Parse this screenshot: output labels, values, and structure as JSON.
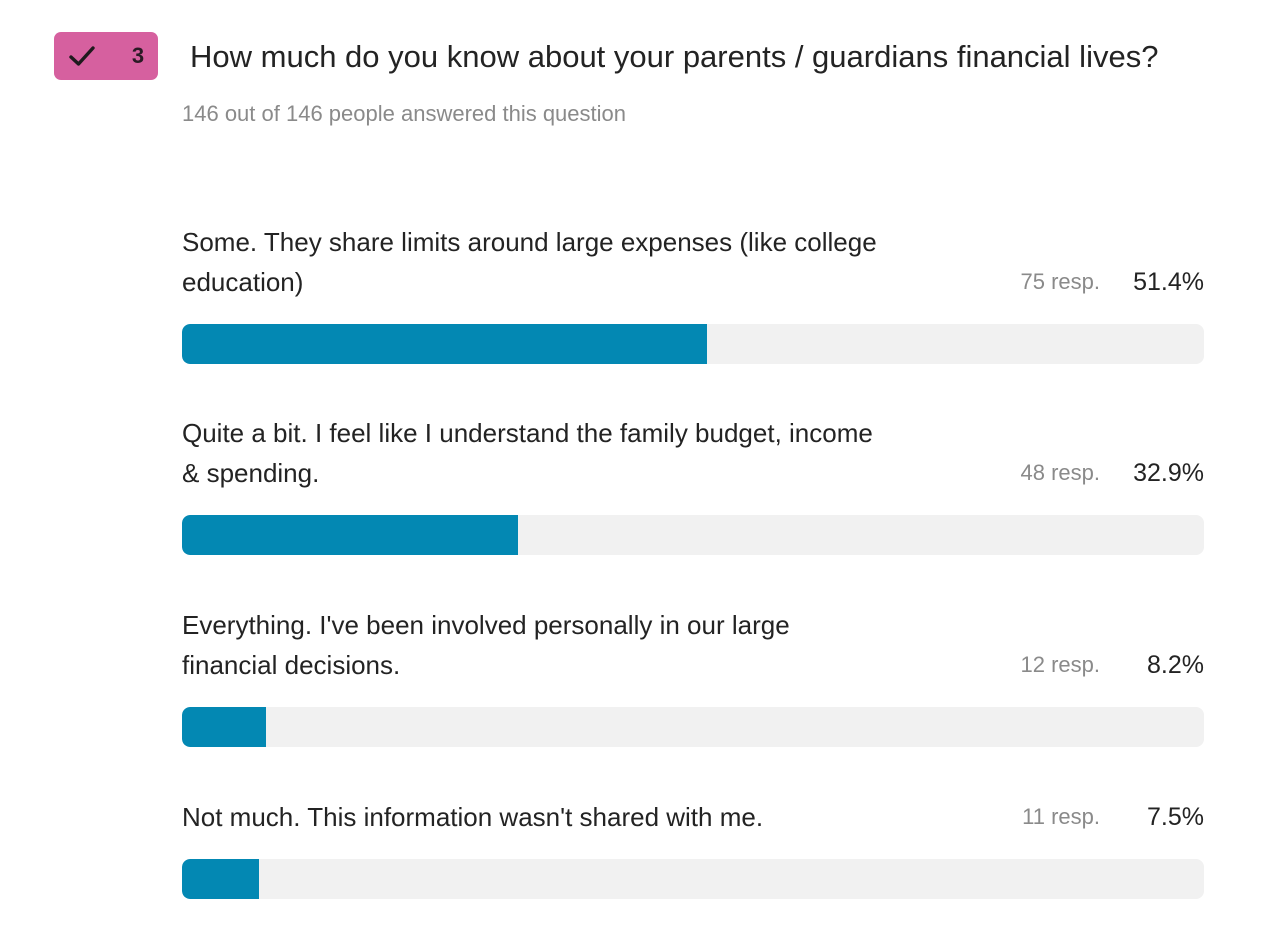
{
  "question": {
    "number": "3",
    "title": "How much do you know about your parents / guardians financial lives?",
    "answered_text": "146 out of 146 people answered this question"
  },
  "colors": {
    "badge": "#d6609f",
    "bar_fill": "#0388b3",
    "bar_track": "#f1f1f1",
    "check": "#1f1a1d"
  },
  "icons": {
    "badge_icon": "check-icon"
  },
  "chart_data": {
    "type": "bar",
    "orientation": "horizontal",
    "categories": [
      "Some. They share limits around large expenses (like college education)",
      "Quite a bit. I feel like I understand the family budget, income & spending.",
      "Everything. I've been involved personally in our large financial decisions.",
      "Not much. This information wasn't shared with me."
    ],
    "responses_labels": [
      "75 resp.",
      "48 resp.",
      "12 resp.",
      "11 resp."
    ],
    "percent_labels": [
      "51.4%",
      "32.9%",
      "8.2%",
      "7.5%"
    ],
    "values": [
      51.4,
      32.9,
      8.2,
      7.5
    ],
    "responses": [
      75,
      48,
      12,
      11
    ],
    "xlim": [
      0,
      100
    ]
  }
}
